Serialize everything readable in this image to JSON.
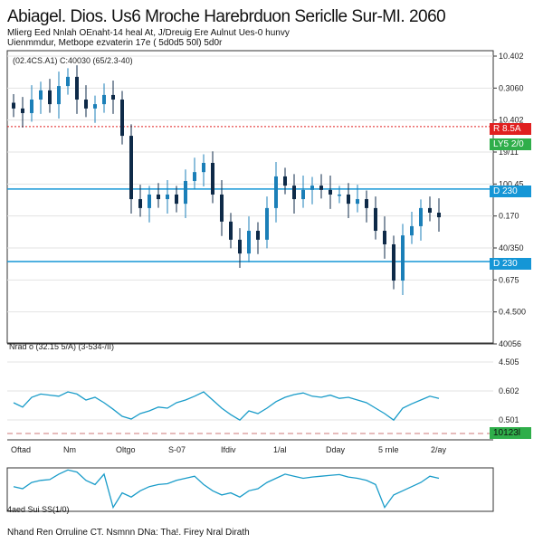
{
  "header": {
    "title": "Abiagel. Dios. Us6 Mroche Harebrduon Sericlle  Sur-MI. 2060",
    "subtitle_1": "Mlierg Eed Nnlah OEnaht-14 heal At, J/Dreuig Ere Aulnut Ues-0 hunvy",
    "subtitle_2": "Uienmmdur, Metbope ezvaterin  17e  ( 5d0d5 50l)  5d0r"
  },
  "footer": {
    "note": "4aed Sui SS(1/0)",
    "caption": "Nhand Ren Orruline CT.  Nsmnn DNa:  Tha!.  Firey  Nral Dirath"
  },
  "colors": {
    "bull": "#1b7fb8",
    "bear": "#0e2a48",
    "line": "#1a9cc9",
    "red": "#e02020",
    "green": "#2fae4a",
    "blue": "#1596d6"
  },
  "chart_data": [
    {
      "type": "candlestick",
      "panel": "main",
      "legend": "(02.4CS.A1)  C:40030 (65/2.3-40)",
      "yticks": [
        "10.402",
        "0.3060",
        "10.402",
        "19/11",
        "100.45",
        "0.170",
        "40/350",
        "0.675",
        "0.4.500",
        "40056"
      ],
      "ylim": [
        0,
        100
      ],
      "values": [
        81.8,
        80.2,
        84.9,
        88.1,
        83.3,
        89.6,
        92.8,
        84.9,
        81.8,
        83.3,
        86.5,
        84.9,
        72.3,
        50.3,
        47.2,
        51.9,
        50.3,
        51.9,
        48.7,
        56.6,
        59.7,
        62.9,
        51.9,
        42.5,
        36.2,
        31.4,
        39.3,
        36.2,
        47.2,
        58.2,
        55.0,
        50.3,
        53.5,
        55.0,
        53.5,
        51.9,
        51.9,
        48.7,
        50.3,
        47.2,
        39.3,
        34.6,
        22.0,
        37.7,
        40.9,
        47.2,
        45.6,
        44.0
      ],
      "levels": [
        {
          "value": 75.5,
          "label": "R 8.5A",
          "color": "red",
          "style": "dotted"
        },
        {
          "value": 53.8,
          "label": "D 230",
          "color": "blue"
        },
        {
          "value": 28.6,
          "label": "D 230",
          "color": "blue"
        }
      ],
      "green_tag": "LY5 2/0"
    },
    {
      "type": "line",
      "panel": "indicator-1",
      "legend": "Nrad o (32.15 5/A) (3-534-/II)",
      "yticks": [
        "4.505",
        "0.602",
        "0.501"
      ],
      "ylim": [
        0,
        100
      ],
      "level_label": "10123l",
      "values": [
        50,
        42,
        60,
        66,
        64,
        62,
        70,
        66,
        55,
        60,
        50,
        38,
        25,
        20,
        30,
        35,
        42,
        40,
        50,
        55,
        62,
        70,
        55,
        40,
        28,
        18,
        35,
        30,
        40,
        52,
        60,
        65,
        68,
        62,
        60,
        64,
        58,
        60,
        55,
        50,
        40,
        30,
        18,
        40,
        48,
        55,
        62,
        58
      ]
    },
    {
      "type": "line",
      "panel": "indicator-2",
      "xticks": [
        "Oftad",
        "Nm",
        "Oltgo",
        "S-07",
        "Ifdiv",
        "1/al",
        "Dday",
        "5 rnle",
        "2/ay"
      ],
      "ylim": [
        0,
        100
      ],
      "values": [
        55,
        50,
        65,
        70,
        72,
        85,
        95,
        90,
        70,
        60,
        85,
        5,
        40,
        30,
        45,
        55,
        60,
        62,
        70,
        75,
        80,
        60,
        45,
        35,
        40,
        30,
        45,
        50,
        65,
        75,
        85,
        80,
        75,
        78,
        80,
        82,
        84,
        78,
        75,
        70,
        60,
        5,
        35,
        45,
        55,
        65,
        80,
        75
      ]
    }
  ]
}
